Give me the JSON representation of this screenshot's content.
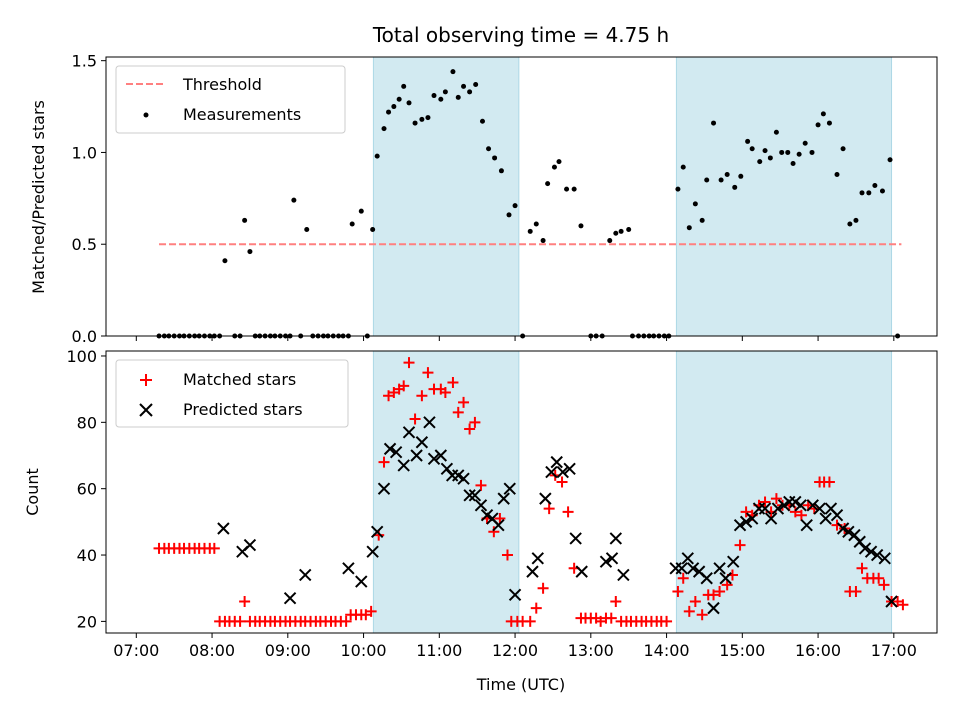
{
  "chart_data": {
    "title": "Total observing time = 4.75 h",
    "type": "scatter",
    "colors": {
      "shade": "#add8e6",
      "threshold": "#ff8080",
      "measurement": "#000000",
      "matched": "#ff0000",
      "predicted": "#000000",
      "frame": "#000000"
    },
    "shaded_intervals": [
      [
        10.13,
        12.05
      ],
      [
        14.13,
        16.97
      ]
    ],
    "x_ticks": [
      "07:00",
      "08:00",
      "09:00",
      "10:00",
      "11:00",
      "12:00",
      "13:00",
      "14:00",
      "15:00",
      "16:00",
      "17:00"
    ],
    "xlabel": "Time (UTC)",
    "xlim": [
      6.6,
      17.57
    ],
    "top": {
      "ylabel": "Matched/Predicted stars",
      "ylim": [
        0,
        1.52
      ],
      "y_ticks": [
        "0.0",
        "0.5",
        "1.0",
        "1.5"
      ],
      "legend": {
        "threshold": "Threshold",
        "measurements": "Measurements",
        "position": "top-left"
      },
      "threshold": {
        "value": 0.5,
        "x_start": 7.3,
        "x_end": 17.1
      },
      "measurements": [
        [
          7.3,
          0
        ],
        [
          7.37,
          0
        ],
        [
          7.43,
          0
        ],
        [
          7.5,
          0
        ],
        [
          7.57,
          0
        ],
        [
          7.63,
          0
        ],
        [
          7.7,
          0
        ],
        [
          7.77,
          0
        ],
        [
          7.83,
          0
        ],
        [
          7.9,
          0
        ],
        [
          7.97,
          0
        ],
        [
          8.03,
          0
        ],
        [
          8.1,
          0
        ],
        [
          8.17,
          0.41
        ],
        [
          8.3,
          0
        ],
        [
          8.37,
          0
        ],
        [
          8.43,
          0.63
        ],
        [
          8.5,
          0.46
        ],
        [
          8.57,
          0
        ],
        [
          8.63,
          0
        ],
        [
          8.7,
          0
        ],
        [
          8.77,
          0
        ],
        [
          8.83,
          0
        ],
        [
          8.9,
          0
        ],
        [
          8.97,
          0
        ],
        [
          9.03,
          0
        ],
        [
          9.08,
          0.74
        ],
        [
          9.17,
          0
        ],
        [
          9.25,
          0.58
        ],
        [
          9.33,
          0
        ],
        [
          9.4,
          0
        ],
        [
          9.47,
          0
        ],
        [
          9.53,
          0
        ],
        [
          9.6,
          0
        ],
        [
          9.67,
          0
        ],
        [
          9.73,
          0
        ],
        [
          9.8,
          0
        ],
        [
          9.85,
          0.61
        ],
        [
          9.97,
          0.68
        ],
        [
          10.05,
          0
        ],
        [
          10.12,
          0.58
        ],
        [
          10.18,
          0.98
        ],
        [
          10.27,
          1.13
        ],
        [
          10.33,
          1.22
        ],
        [
          10.4,
          1.25
        ],
        [
          10.47,
          1.29
        ],
        [
          10.53,
          1.36
        ],
        [
          10.6,
          1.27
        ],
        [
          10.68,
          1.16
        ],
        [
          10.77,
          1.18
        ],
        [
          10.85,
          1.19
        ],
        [
          10.93,
          1.31
        ],
        [
          11.02,
          1.29
        ],
        [
          11.08,
          1.33
        ],
        [
          11.18,
          1.44
        ],
        [
          11.25,
          1.3
        ],
        [
          11.32,
          1.36
        ],
        [
          11.4,
          1.33
        ],
        [
          11.48,
          1.37
        ],
        [
          11.57,
          1.17
        ],
        [
          11.65,
          1.02
        ],
        [
          11.73,
          0.97
        ],
        [
          11.82,
          0.9
        ],
        [
          11.92,
          0.66
        ],
        [
          12.0,
          0.71
        ],
        [
          12.1,
          0
        ],
        [
          12.2,
          0.57
        ],
        [
          12.28,
          0.61
        ],
        [
          12.37,
          0.52
        ],
        [
          12.43,
          0.83
        ],
        [
          12.52,
          0.92
        ],
        [
          12.58,
          0.95
        ],
        [
          12.68,
          0.8
        ],
        [
          12.78,
          0.8
        ],
        [
          12.87,
          0.6
        ],
        [
          13.0,
          0
        ],
        [
          13.07,
          0
        ],
        [
          13.15,
          0
        ],
        [
          13.25,
          0.52
        ],
        [
          13.33,
          0.56
        ],
        [
          13.4,
          0.57
        ],
        [
          13.5,
          0.58
        ],
        [
          13.55,
          0
        ],
        [
          13.63,
          0
        ],
        [
          13.7,
          0
        ],
        [
          13.77,
          0
        ],
        [
          13.83,
          0
        ],
        [
          13.9,
          0
        ],
        [
          13.97,
          0
        ],
        [
          14.03,
          0
        ],
        [
          14.15,
          0.8
        ],
        [
          14.22,
          0.92
        ],
        [
          14.3,
          0.59
        ],
        [
          14.38,
          0.72
        ],
        [
          14.47,
          0.63
        ],
        [
          14.53,
          0.85
        ],
        [
          14.62,
          1.16
        ],
        [
          14.72,
          0.85
        ],
        [
          14.8,
          0.88
        ],
        [
          14.9,
          0.81
        ],
        [
          14.98,
          0.87
        ],
        [
          15.07,
          1.06
        ],
        [
          15.13,
          1.02
        ],
        [
          15.23,
          0.95
        ],
        [
          15.3,
          1.01
        ],
        [
          15.37,
          0.97
        ],
        [
          15.45,
          1.11
        ],
        [
          15.52,
          1.0
        ],
        [
          15.6,
          1.0
        ],
        [
          15.67,
          0.94
        ],
        [
          15.75,
          0.99
        ],
        [
          15.83,
          1.05
        ],
        [
          15.92,
          1.0
        ],
        [
          16.0,
          1.15
        ],
        [
          16.07,
          1.21
        ],
        [
          16.15,
          1.16
        ],
        [
          16.25,
          0.88
        ],
        [
          16.33,
          1.02
        ],
        [
          16.42,
          0.61
        ],
        [
          16.5,
          0.63
        ],
        [
          16.58,
          0.78
        ],
        [
          16.67,
          0.78
        ],
        [
          16.75,
          0.82
        ],
        [
          16.85,
          0.79
        ],
        [
          16.95,
          0.96
        ],
        [
          17.05,
          0
        ]
      ]
    },
    "bottom": {
      "ylabel": "Count",
      "ylim": [
        16.5,
        101.5
      ],
      "y_ticks": [
        "20",
        "40",
        "60",
        "80",
        "100"
      ],
      "legend": {
        "matched": "Matched stars",
        "predicted": "Predicted stars",
        "position": "top-left"
      },
      "matched": [
        [
          7.3,
          42
        ],
        [
          7.37,
          42
        ],
        [
          7.43,
          42
        ],
        [
          7.5,
          42
        ],
        [
          7.57,
          42
        ],
        [
          7.63,
          42
        ],
        [
          7.7,
          42
        ],
        [
          7.77,
          42
        ],
        [
          7.83,
          42
        ],
        [
          7.9,
          42
        ],
        [
          7.97,
          42
        ],
        [
          8.03,
          42
        ],
        [
          8.1,
          20
        ],
        [
          8.17,
          20
        ],
        [
          8.23,
          20
        ],
        [
          8.3,
          20
        ],
        [
          8.37,
          20
        ],
        [
          8.43,
          26
        ],
        [
          8.5,
          20
        ],
        [
          8.57,
          20
        ],
        [
          8.63,
          20
        ],
        [
          8.7,
          20
        ],
        [
          8.77,
          20
        ],
        [
          8.83,
          20
        ],
        [
          8.9,
          20
        ],
        [
          8.97,
          20
        ],
        [
          9.03,
          20
        ],
        [
          9.1,
          20
        ],
        [
          9.17,
          20
        ],
        [
          9.23,
          20
        ],
        [
          9.3,
          20
        ],
        [
          9.37,
          20
        ],
        [
          9.43,
          20
        ],
        [
          9.5,
          20
        ],
        [
          9.57,
          20
        ],
        [
          9.63,
          20
        ],
        [
          9.7,
          20
        ],
        [
          9.77,
          20
        ],
        [
          9.83,
          22
        ],
        [
          9.9,
          22
        ],
        [
          9.97,
          22
        ],
        [
          10.03,
          22
        ],
        [
          10.1,
          23
        ],
        [
          10.2,
          46
        ],
        [
          10.27,
          68
        ],
        [
          10.33,
          88
        ],
        [
          10.4,
          89
        ],
        [
          10.47,
          90
        ],
        [
          10.53,
          91
        ],
        [
          10.6,
          98
        ],
        [
          10.68,
          81
        ],
        [
          10.77,
          88
        ],
        [
          10.85,
          95
        ],
        [
          10.93,
          90
        ],
        [
          11.02,
          90
        ],
        [
          11.08,
          89
        ],
        [
          11.18,
          92
        ],
        [
          11.25,
          83
        ],
        [
          11.32,
          86
        ],
        [
          11.4,
          78
        ],
        [
          11.47,
          80
        ],
        [
          11.55,
          61
        ],
        [
          11.63,
          51
        ],
        [
          11.72,
          47
        ],
        [
          11.8,
          51
        ],
        [
          11.9,
          40
        ],
        [
          11.95,
          20
        ],
        [
          12.03,
          20
        ],
        [
          12.1,
          20
        ],
        [
          12.2,
          20
        ],
        [
          12.28,
          24
        ],
        [
          12.37,
          30
        ],
        [
          12.45,
          54
        ],
        [
          12.53,
          64
        ],
        [
          12.62,
          62
        ],
        [
          12.7,
          53
        ],
        [
          12.78,
          36
        ],
        [
          12.87,
          21
        ],
        [
          12.93,
          21
        ],
        [
          13.0,
          21
        ],
        [
          13.07,
          21
        ],
        [
          13.13,
          20
        ],
        [
          13.2,
          21
        ],
        [
          13.27,
          21
        ],
        [
          13.33,
          26
        ],
        [
          13.4,
          20
        ],
        [
          13.47,
          20
        ],
        [
          13.53,
          20
        ],
        [
          13.6,
          20
        ],
        [
          13.67,
          20
        ],
        [
          13.73,
          20
        ],
        [
          13.8,
          20
        ],
        [
          13.87,
          20
        ],
        [
          13.93,
          20
        ],
        [
          14.0,
          20
        ],
        [
          14.15,
          29
        ],
        [
          14.22,
          33
        ],
        [
          14.3,
          23
        ],
        [
          14.38,
          26
        ],
        [
          14.47,
          22
        ],
        [
          14.55,
          28
        ],
        [
          14.62,
          28
        ],
        [
          14.7,
          29
        ],
        [
          14.8,
          31
        ],
        [
          14.87,
          34
        ],
        [
          14.97,
          43
        ],
        [
          15.05,
          53
        ],
        [
          15.13,
          52
        ],
        [
          15.22,
          55
        ],
        [
          15.3,
          56
        ],
        [
          15.38,
          53
        ],
        [
          15.45,
          57
        ],
        [
          15.53,
          55
        ],
        [
          15.62,
          55
        ],
        [
          15.7,
          53
        ],
        [
          15.78,
          52
        ],
        [
          15.87,
          55
        ],
        [
          15.95,
          54
        ],
        [
          16.02,
          62
        ],
        [
          16.08,
          62
        ],
        [
          16.15,
          62
        ],
        [
          16.25,
          49
        ],
        [
          16.35,
          48
        ],
        [
          16.42,
          29
        ],
        [
          16.5,
          29
        ],
        [
          16.58,
          36
        ],
        [
          16.65,
          33
        ],
        [
          16.73,
          33
        ],
        [
          16.8,
          33
        ],
        [
          16.87,
          31
        ],
        [
          16.97,
          26
        ],
        [
          17.05,
          26
        ],
        [
          17.12,
          25
        ]
      ],
      "predicted": [
        [
          8.15,
          48
        ],
        [
          8.4,
          41
        ],
        [
          8.5,
          43
        ],
        [
          9.03,
          27
        ],
        [
          9.23,
          34
        ],
        [
          9.8,
          36
        ],
        [
          9.97,
          32
        ],
        [
          10.12,
          41
        ],
        [
          10.18,
          47
        ],
        [
          10.27,
          60
        ],
        [
          10.35,
          72
        ],
        [
          10.43,
          71
        ],
        [
          10.53,
          67
        ],
        [
          10.6,
          77
        ],
        [
          10.7,
          70
        ],
        [
          10.77,
          74
        ],
        [
          10.87,
          80
        ],
        [
          10.93,
          69
        ],
        [
          11.02,
          70
        ],
        [
          11.1,
          66
        ],
        [
          11.17,
          64
        ],
        [
          11.25,
          64
        ],
        [
          11.32,
          63
        ],
        [
          11.4,
          58
        ],
        [
          11.47,
          58
        ],
        [
          11.55,
          55
        ],
        [
          11.63,
          52
        ],
        [
          11.7,
          51
        ],
        [
          11.78,
          49
        ],
        [
          11.85,
          57
        ],
        [
          11.93,
          60
        ],
        [
          12.0,
          28
        ],
        [
          12.23,
          35
        ],
        [
          12.3,
          39
        ],
        [
          12.4,
          57
        ],
        [
          12.48,
          65
        ],
        [
          12.55,
          68
        ],
        [
          12.63,
          65
        ],
        [
          12.72,
          66
        ],
        [
          12.8,
          45
        ],
        [
          12.88,
          35
        ],
        [
          13.2,
          38
        ],
        [
          13.28,
          39
        ],
        [
          13.33,
          45
        ],
        [
          13.43,
          34
        ],
        [
          14.12,
          36
        ],
        [
          14.2,
          36
        ],
        [
          14.28,
          39
        ],
        [
          14.35,
          36
        ],
        [
          14.43,
          35
        ],
        [
          14.53,
          33
        ],
        [
          14.62,
          24
        ],
        [
          14.7,
          36
        ],
        [
          14.78,
          33
        ],
        [
          14.88,
          38
        ],
        [
          14.97,
          49
        ],
        [
          15.05,
          50
        ],
        [
          15.13,
          51
        ],
        [
          15.22,
          54
        ],
        [
          15.3,
          54
        ],
        [
          15.38,
          51
        ],
        [
          15.47,
          54
        ],
        [
          15.55,
          55
        ],
        [
          15.62,
          56
        ],
        [
          15.7,
          56
        ],
        [
          15.77,
          55
        ],
        [
          15.85,
          49
        ],
        [
          15.93,
          55
        ],
        [
          16.02,
          54
        ],
        [
          16.1,
          51
        ],
        [
          16.17,
          54
        ],
        [
          16.25,
          52
        ],
        [
          16.33,
          48
        ],
        [
          16.4,
          47
        ],
        [
          16.48,
          46
        ],
        [
          16.55,
          44
        ],
        [
          16.62,
          42
        ],
        [
          16.7,
          41
        ],
        [
          16.78,
          40
        ],
        [
          16.88,
          39
        ],
        [
          16.97,
          26
        ]
      ]
    }
  }
}
